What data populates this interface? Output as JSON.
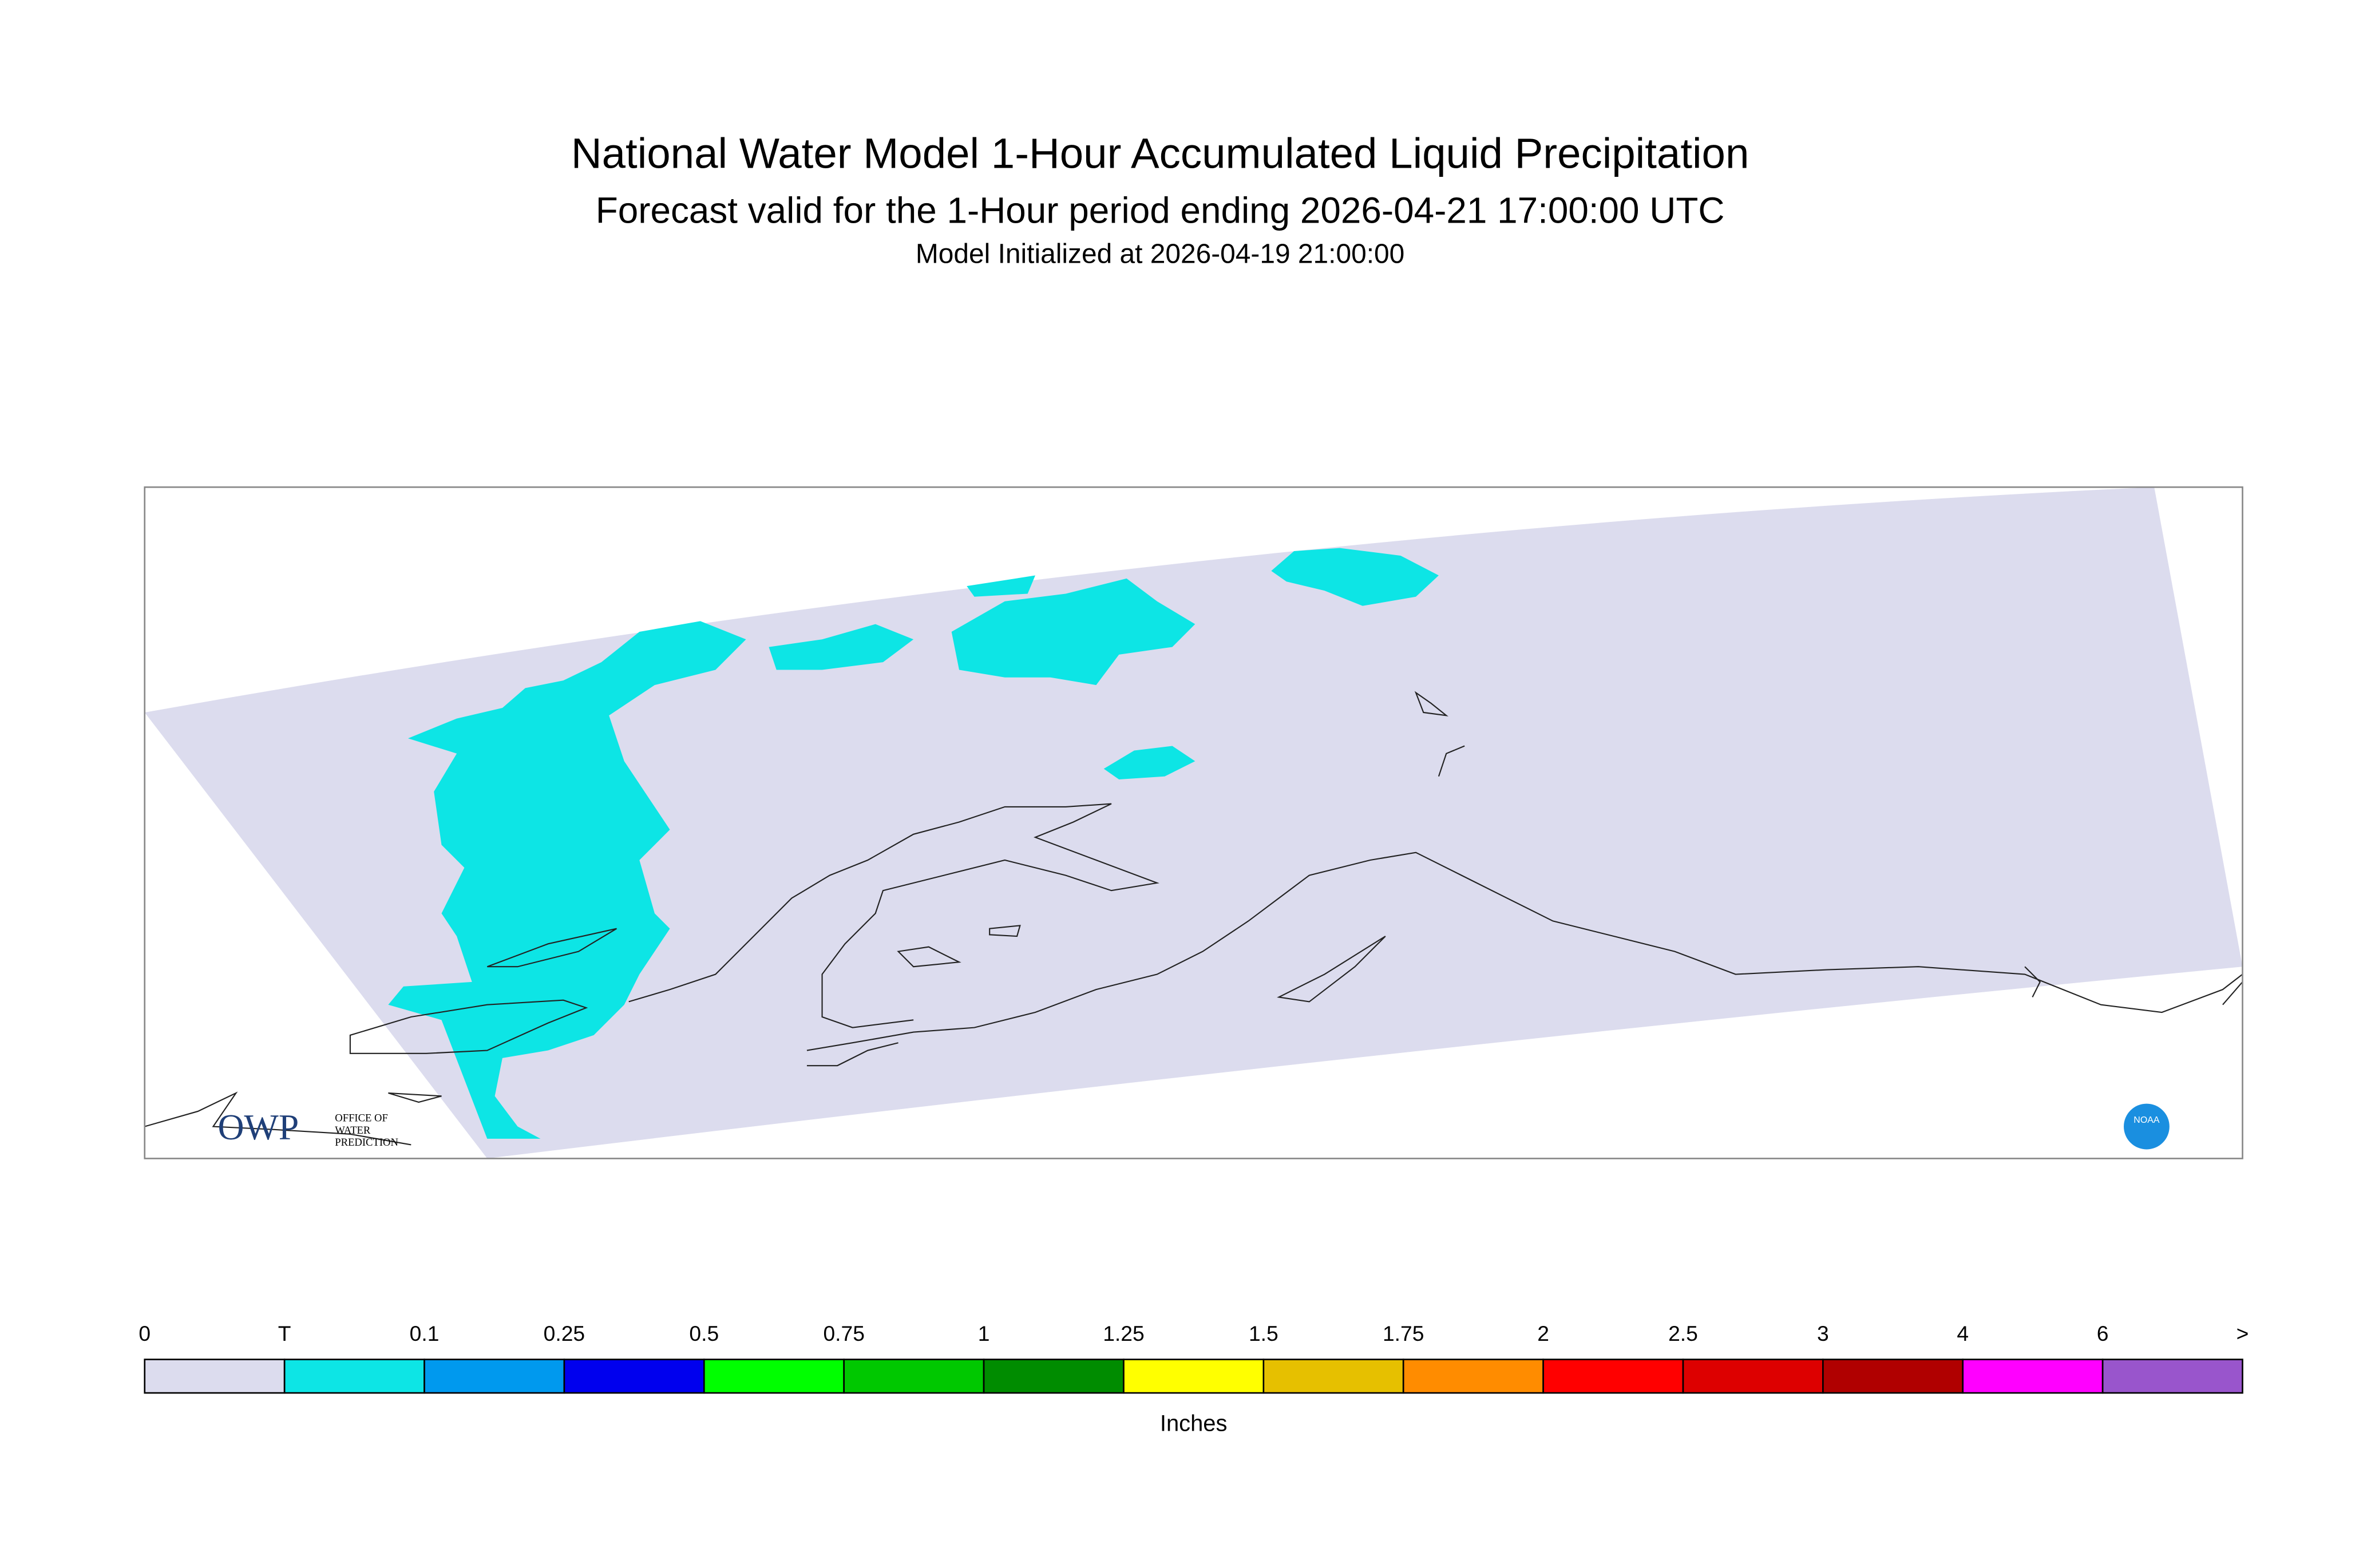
{
  "header": {
    "title": "National Water Model 1-Hour Accumulated Liquid Precipitation",
    "subtitle": "Forecast valid for the 1-Hour period ending 2026-04-21 17:00:00 UTC",
    "initialized": "Model Initialized at 2026-04-19 21:00:00"
  },
  "logo": {
    "owp": "OWP",
    "owp_text": [
      "OFFICE OF",
      "WATER",
      "PREDICTION"
    ],
    "noaa": "NOAA"
  },
  "legend": {
    "labels": [
      "0",
      "T",
      "0.1",
      "0.25",
      "0.5",
      "0.75",
      "1",
      "1.25",
      "1.5",
      "1.75",
      "2",
      "2.5",
      "3",
      "4",
      "6",
      ">"
    ],
    "colors": [
      "#dcdcee",
      "#0de5e5",
      "#0099ee",
      "#0000ee",
      "#00ff00",
      "#00c800",
      "#008c00",
      "#ffff00",
      "#e6c000",
      "#ff8c00",
      "#ff0000",
      "#dd0000",
      "#b00000",
      "#ff00ff",
      "#9955cc"
    ],
    "units": "Inches"
  }
}
